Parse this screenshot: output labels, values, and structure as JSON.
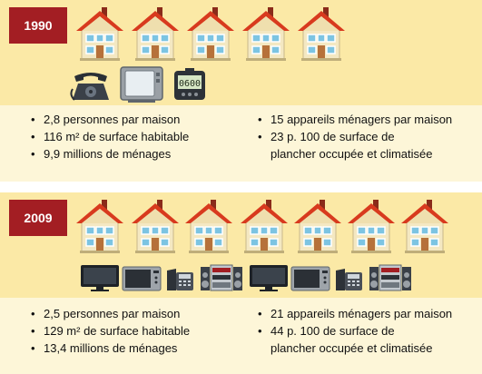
{
  "sections": [
    {
      "year": "1990",
      "house_count": 5,
      "appliances": [
        "telephone-icon",
        "television-icon",
        "digital-clock-icon"
      ],
      "clock_display": "0600",
      "stats_left": [
        "2,8 personnes par maison",
        "116 m² de surface habitable",
        "9,9 millions de ménages"
      ],
      "stats_right": [
        "15 appareils ménagers par maison",
        "23 p. 100 de surface de",
        "plancher occupée et climatisée"
      ]
    },
    {
      "year": "2009",
      "house_count": 7,
      "appliances": [
        "flat-tv-icon",
        "microwave-icon",
        "office-phone-icon",
        "stereo-icon",
        "flat-tv-icon",
        "microwave-icon",
        "office-phone-icon",
        "stereo-icon"
      ],
      "stats_left": [
        "2,5 personnes par maison",
        "129 m² de surface habitable",
        "13,4  millions de ménages"
      ],
      "stats_right": [
        "21 appareils ménagers par maison",
        "44 p. 100 de surface de",
        "plancher occupée et climatisée"
      ]
    }
  ],
  "colors": {
    "year_badge": "#a31e23",
    "band": "#fbe9a6",
    "background": "#fdf6d8",
    "roof": "#d83a1e",
    "wall": "#f4e8c2",
    "window": "#7cc4e2"
  }
}
